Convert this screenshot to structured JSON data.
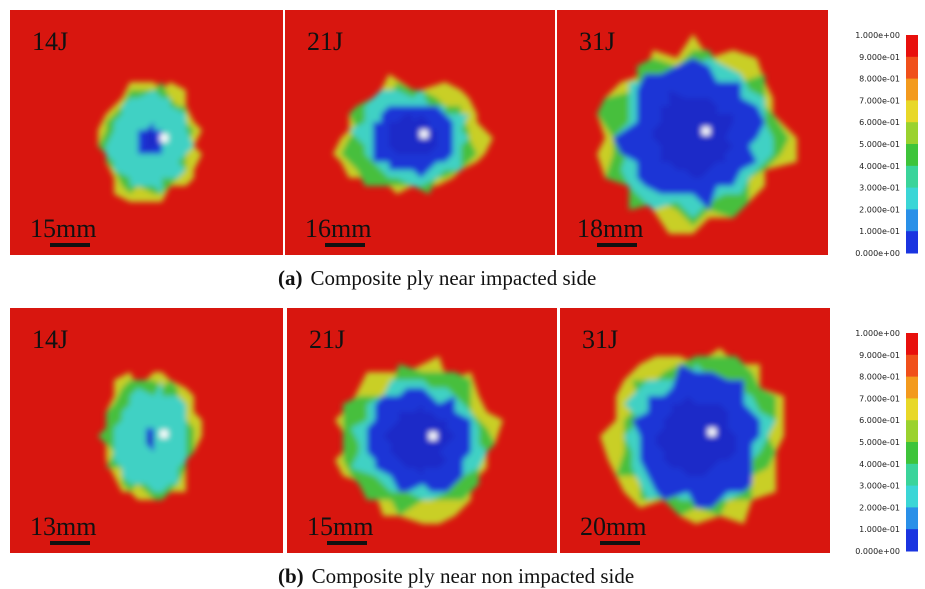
{
  "rows": [
    {
      "label": "(a)",
      "caption": "Composite ply near impacted side",
      "panels": [
        {
          "energy": "14J",
          "scale": "15mm"
        },
        {
          "energy": "21J",
          "scale": "16mm"
        },
        {
          "energy": "31J",
          "scale": "18mm"
        }
      ],
      "colorbar": [
        "1.000e+00",
        "9.000e-01",
        "8.000e-01",
        "7.000e-01",
        "6.000e-01",
        "5.000e-01",
        "4.000e-01",
        "3.000e-01",
        "2.000e-01",
        "1.000e-01",
        "0.000e+00"
      ]
    },
    {
      "label": "(b)",
      "caption": "Composite ply near non impacted side",
      "panels": [
        {
          "energy": "14J",
          "scale": "13mm"
        },
        {
          "energy": "21J",
          "scale": "15mm"
        },
        {
          "energy": "31J",
          "scale": "20mm"
        }
      ],
      "colorbar": [
        "1.000e+00",
        "9.000e-01",
        "8.000e-01",
        "7.000e-01",
        "6.000e-01",
        "5.000e-01",
        "4.000e-01",
        "3.000e-01",
        "2.000e-01",
        "1.000e-01",
        "0.000e+00"
      ]
    }
  ]
}
